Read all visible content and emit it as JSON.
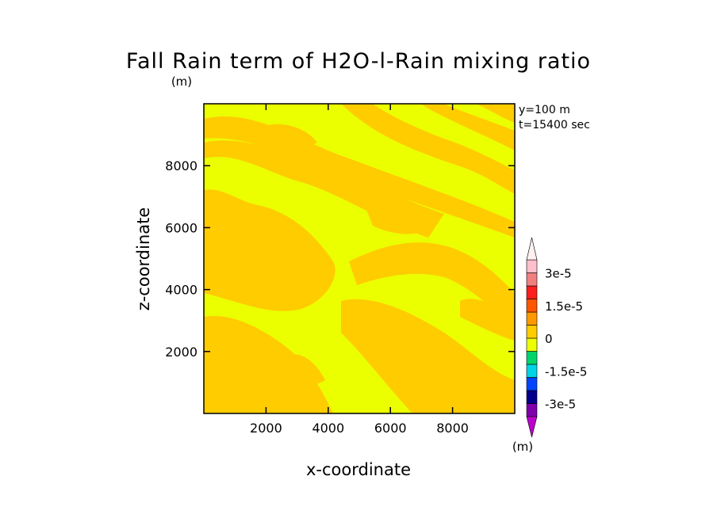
{
  "chart_data": {
    "type": "heatmap",
    "title": "Fall Rain term of H2O-l-Rain mixing ratio",
    "units_label": "(m)",
    "annotation_y": "y=100 m",
    "annotation_t": "t=15400 sec",
    "xlabel": "x-coordinate",
    "ylabel": "z-coordinate",
    "xlim": [
      0,
      10000
    ],
    "ylim": [
      0,
      10000
    ],
    "x_ticks": [
      2000,
      4000,
      6000,
      8000
    ],
    "y_ticks": [
      2000,
      4000,
      6000,
      8000
    ],
    "x_tick_labels": [
      "2000",
      "4000",
      "6000",
      "8000"
    ],
    "y_tick_labels": [
      "2000",
      "4000",
      "6000",
      "8000"
    ],
    "field_colors": {
      "negative_small": "#ffcc00",
      "positive_small": "#ebff00"
    },
    "colorbar": {
      "label": "(m)",
      "levels": [
        {
          "color": "#7f00aa"
        },
        {
          "color": "#00008b"
        },
        {
          "color": "#0044ff"
        },
        {
          "color": "#00d4e6"
        },
        {
          "color": "#00d46a"
        },
        {
          "color": "#ebff00"
        },
        {
          "color": "#ffcc00"
        },
        {
          "color": "#ff9900"
        },
        {
          "color": "#ff5500"
        },
        {
          "color": "#ff1e1e"
        },
        {
          "color": "#f08080"
        },
        {
          "color": "#ffc0cb"
        }
      ],
      "under_color": "#bb00cc",
      "over_color": "#fff0f0",
      "tick_labels": [
        "3e-5",
        "1.5e-5",
        "0",
        "-1.5e-5",
        "-3e-5"
      ],
      "tick_values": [
        3e-05,
        1.5e-05,
        0,
        -1.5e-05,
        -3e-05
      ]
    }
  }
}
